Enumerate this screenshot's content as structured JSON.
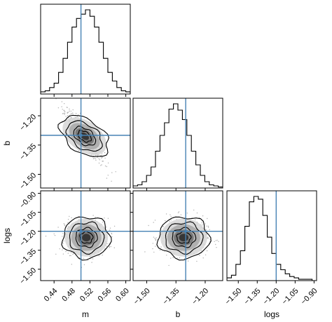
{
  "chart_data": {
    "type": "corner",
    "parameters": [
      "m",
      "b",
      "logs"
    ],
    "truths": {
      "m": 0.5,
      "b": -1.3,
      "logs": -1.2
    },
    "colors": {
      "truth": "#4682b4",
      "hist": "#000000",
      "points": "#b0b0b0",
      "contour": "#000000"
    },
    "ranges": {
      "m": [
        0.41,
        0.61
      ],
      "b": [
        -1.57,
        -1.11
      ],
      "logs": [
        -1.59,
        -0.88
      ]
    },
    "ticks": {
      "m": [
        0.44,
        0.48,
        0.52,
        0.56,
        0.6
      ],
      "b": [
        -1.5,
        -1.35,
        -1.2
      ],
      "logs": [
        -1.5,
        -1.35,
        -1.2,
        -1.05,
        -0.9
      ]
    },
    "tick_labels": {
      "m": [
        "0.44",
        "0.48",
        "0.52",
        "0.56",
        "0.60"
      ],
      "b": [
        "−1.50",
        "−1.35",
        "−1.20"
      ],
      "logs": [
        "−1.50",
        "−1.35",
        "−1.20",
        "−1.05",
        "−0.90"
      ]
    },
    "hist_m": {
      "edges_start": 0.41,
      "bin_width": 0.01,
      "counts": [
        2,
        3,
        6,
        10,
        20,
        33,
        48,
        62,
        70,
        74,
        78,
        72,
        62,
        48,
        33,
        20,
        12,
        6,
        3,
        2
      ]
    },
    "hist_b": {
      "edges_start": -1.57,
      "bin_width": 0.023,
      "counts": [
        2,
        3,
        6,
        12,
        20,
        35,
        50,
        62,
        75,
        80,
        74,
        65,
        50,
        35,
        22,
        12,
        6,
        3,
        2,
        1
      ]
    },
    "hist_logs": {
      "edges_start": -1.59,
      "bin_width": 0.0355,
      "counts": [
        2,
        4,
        12,
        22,
        40,
        58,
        62,
        60,
        48,
        32,
        20,
        12,
        8,
        5,
        3,
        2,
        1,
        1,
        1,
        0
      ]
    },
    "xlabels": [
      "m",
      "b",
      "logs"
    ],
    "ylabels": [
      "",
      "b",
      "logs"
    ]
  }
}
